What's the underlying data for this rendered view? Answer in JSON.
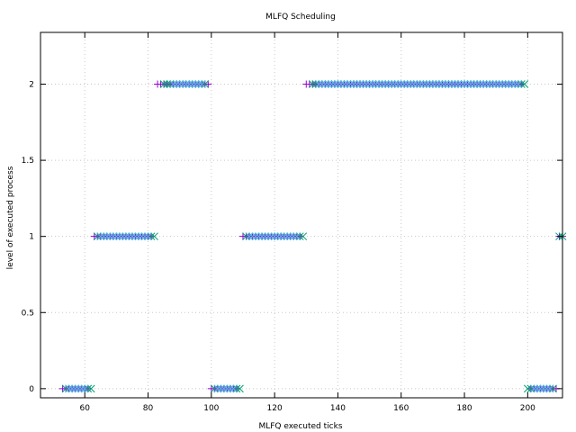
{
  "chart_data": {
    "type": "scatter",
    "title": "MLFQ Scheduling",
    "xlabel": "MLFQ executed ticks",
    "ylabel": "level of executed process",
    "xlim": [
      46,
      211
    ],
    "ylim": [
      -0.06,
      2.34
    ],
    "x_ticks": [
      60,
      80,
      100,
      120,
      140,
      160,
      180,
      200
    ],
    "x_tick_labels": [
      "60",
      "80",
      "100",
      "120",
      "140",
      "160",
      "180",
      "200"
    ],
    "y_ticks": [
      0,
      0.5,
      1,
      1.5,
      2
    ],
    "y_tick_labels": [
      "0",
      "0.5",
      "1",
      "1.5",
      "2"
    ],
    "grid": true,
    "legend": "none",
    "series": [
      {
        "marker": "plus",
        "color": "#9400d3",
        "segments": [
          {
            "from": 53,
            "to": 61,
            "y": 0
          },
          {
            "from": 63,
            "to": 81,
            "y": 1
          },
          {
            "from": 83,
            "to": 99,
            "y": 2
          },
          {
            "from": 100,
            "to": 108,
            "y": 0
          },
          {
            "from": 110,
            "to": 128,
            "y": 1
          },
          {
            "from": 130,
            "to": 198,
            "y": 2
          },
          {
            "from": 201,
            "to": 209,
            "y": 0
          },
          {
            "from": 210,
            "to": 211,
            "y": 1
          }
        ]
      },
      {
        "marker": "cross",
        "color": "#009e73",
        "segments": [
          {
            "from": 54,
            "to": 62,
            "y": 0
          },
          {
            "from": 64,
            "to": 82,
            "y": 1
          },
          {
            "from": 85,
            "to": 98,
            "y": 2
          },
          {
            "from": 101,
            "to": 109,
            "y": 0
          },
          {
            "from": 111,
            "to": 129,
            "y": 1
          },
          {
            "from": 132,
            "to": 199,
            "y": 2
          },
          {
            "from": 200,
            "to": 208,
            "y": 0
          },
          {
            "from": 210,
            "to": 211,
            "y": 1
          }
        ]
      },
      {
        "marker": "cross",
        "color": "#56b4e9",
        "segments": [
          {
            "from": 55,
            "to": 60,
            "y": 0
          },
          {
            "from": 65,
            "to": 80,
            "y": 1
          },
          {
            "from": 88,
            "to": 97,
            "y": 2
          },
          {
            "from": 102,
            "to": 107,
            "y": 0
          },
          {
            "from": 112,
            "to": 127,
            "y": 1
          },
          {
            "from": 134,
            "to": 197,
            "y": 2
          },
          {
            "from": 202,
            "to": 207,
            "y": 0
          }
        ]
      }
    ]
  }
}
